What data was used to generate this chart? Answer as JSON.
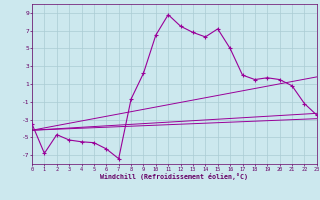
{
  "background_color": "#cce8ee",
  "grid_color": "#aaccd4",
  "line_color": "#990099",
  "marker_color": "#990099",
  "xlabel": "Windchill (Refroidissement éolien,°C)",
  "xlabel_color": "#660066",
  "tick_color": "#660066",
  "xlim": [
    0,
    23
  ],
  "ylim": [
    -8,
    10
  ],
  "xticks": [
    0,
    1,
    2,
    3,
    4,
    5,
    6,
    7,
    8,
    9,
    10,
    11,
    12,
    13,
    14,
    15,
    16,
    17,
    18,
    19,
    20,
    21,
    22,
    23
  ],
  "yticks": [
    -7,
    -5,
    -3,
    -1,
    1,
    3,
    5,
    7,
    9
  ],
  "series1_x": [
    0,
    1,
    2,
    3,
    4,
    5,
    6,
    7,
    8,
    9,
    10,
    11,
    12,
    13,
    14,
    15,
    16,
    17,
    18,
    19,
    20,
    21,
    22,
    23
  ],
  "series1_y": [
    -3.5,
    -6.8,
    -4.7,
    -5.3,
    -5.5,
    -5.6,
    -6.3,
    -7.4,
    -0.7,
    2.2,
    6.5,
    8.8,
    7.5,
    6.8,
    6.3,
    7.2,
    5.0,
    2.0,
    1.5,
    1.7,
    1.5,
    0.8,
    -1.2,
    -2.5
  ],
  "trend1_x": [
    0,
    23
  ],
  "trend1_y": [
    -4.2,
    1.8
  ],
  "trend2_x": [
    0,
    23
  ],
  "trend2_y": [
    -4.2,
    -2.3
  ],
  "trend3_x": [
    0,
    23
  ],
  "trend3_y": [
    -4.2,
    -2.9
  ],
  "figsize": [
    3.2,
    2.0
  ],
  "dpi": 100
}
